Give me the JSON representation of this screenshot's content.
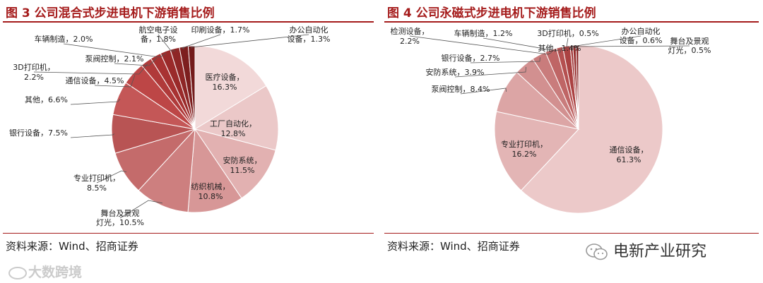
{
  "watermarks": {
    "left": "大数跨境",
    "right": "电新产业研究"
  },
  "charts": [
    {
      "fig_no": "图 3",
      "title": "公司混合式步进电机下游销售比例",
      "source": "资料来源：Wind、招商证券"
    },
    {
      "fig_no": "图 4",
      "title": "公司永磁式步进电机下游销售比例",
      "source": "资料来源：Wind、招商证券"
    }
  ],
  "chart_data": [
    {
      "type": "pie",
      "title": "公司混合式步进电机下游销售比例",
      "colors": [
        "#f2d9d9",
        "#ebc8c8",
        "#e2b1b1",
        "#d79797",
        "#cd7f7f",
        "#c46b6b",
        "#b85454",
        "#c45757",
        "#bd4646",
        "#b03a3a",
        "#a83232",
        "#9a2a2a",
        "#8e2626",
        "#7d1f1f",
        "#741b1b"
      ],
      "slices": [
        {
          "label": "医疗设备",
          "value": 16.3
        },
        {
          "label": "工厂自动化",
          "value": 12.8
        },
        {
          "label": "安防系统",
          "value": 11.5
        },
        {
          "label": "纺织机械",
          "value": 10.8
        },
        {
          "label": "舞台及景观灯光",
          "value": 10.5
        },
        {
          "label": "专业打印机",
          "value": 8.5
        },
        {
          "label": "银行设备",
          "value": 7.5
        },
        {
          "label": "其他",
          "value": 6.6
        },
        {
          "label": "通信设备",
          "value": 4.5
        },
        {
          "label": "3D打印机",
          "value": 2.2
        },
        {
          "label": "泵阀控制",
          "value": 2.1
        },
        {
          "label": "车辆制造",
          "value": 2.0
        },
        {
          "label": "航空电子设备",
          "value": 1.8
        },
        {
          "label": "印刷设备",
          "value": 1.7
        },
        {
          "label": "办公自动化设备",
          "value": 1.3
        }
      ]
    },
    {
      "type": "pie",
      "title": "公司永磁式步进电机下游销售比例",
      "colors": [
        "#ecc9c9",
        "#e3b5b5",
        "#dca5a5",
        "#d29090",
        "#c97c7c",
        "#bf6565",
        "#b55050",
        "#ab4242",
        "#a03737",
        "#952d2d",
        "#8a2626",
        "#7f2020"
      ],
      "slices": [
        {
          "label": "通信设备",
          "value": 61.3
        },
        {
          "label": "专业打印机",
          "value": 16.2
        },
        {
          "label": "泵阀控制",
          "value": 8.4
        },
        {
          "label": "安防系统",
          "value": 3.9
        },
        {
          "label": "银行设备",
          "value": 2.7
        },
        {
          "label": "检测设备",
          "value": 2.2
        },
        {
          "label": "车辆制造",
          "value": 1.2
        },
        {
          "label": "其他",
          "value": 1.4
        },
        {
          "label": "3D打印机",
          "value": 0.5
        },
        {
          "label": "办公自动化设备",
          "value": 0.6
        },
        {
          "label": "舞台及景观灯光",
          "value": 0.5
        }
      ]
    }
  ]
}
